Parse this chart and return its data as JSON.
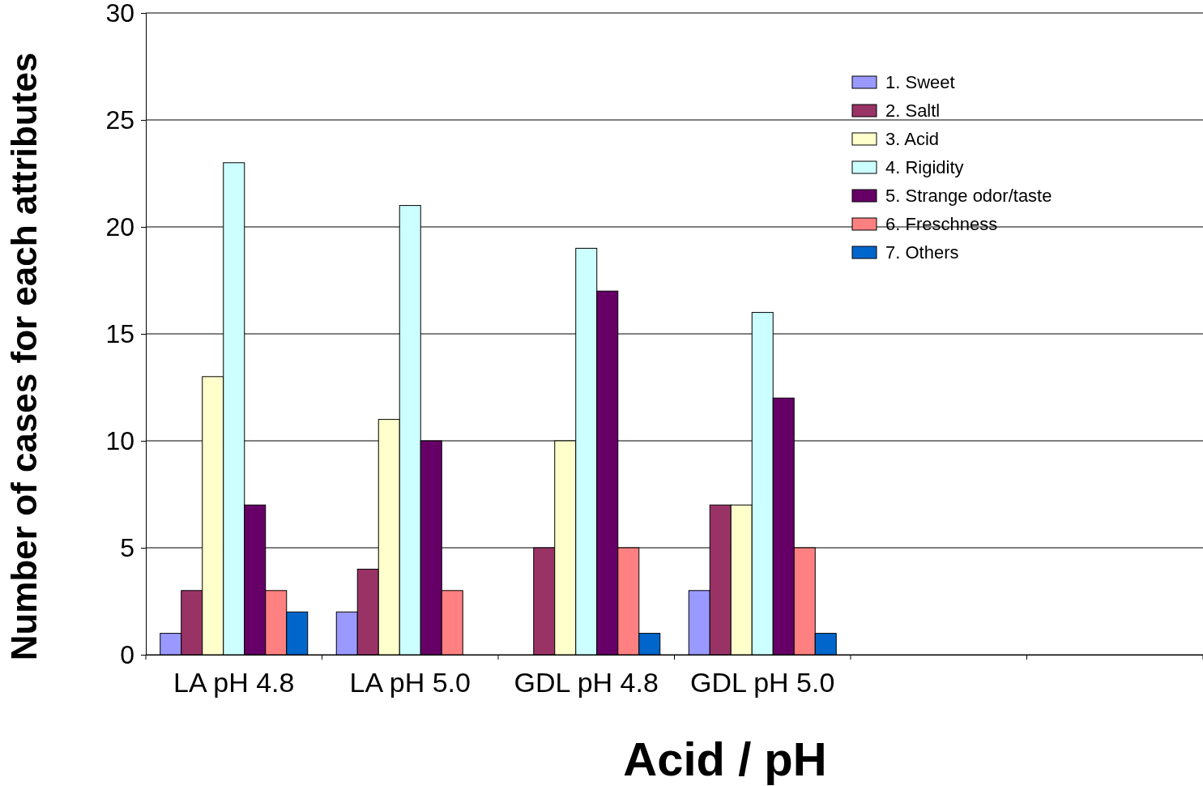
{
  "chart_data": {
    "type": "bar",
    "xlabel": "Acid / pH",
    "ylabel": "Number of cases for each attributes",
    "categories": [
      "LA pH 4.8",
      "LA pH 5.0",
      "GDL pH 4.8",
      "GDL pH 5.0",
      null,
      null
    ],
    "series": [
      {
        "name": "1. Sweet",
        "color": "#9999ff",
        "values": [
          1,
          2,
          0,
          3,
          null,
          null
        ]
      },
      {
        "name": "2. Saltl",
        "color": "#993366",
        "values": [
          3,
          4,
          5,
          7,
          null,
          null
        ]
      },
      {
        "name": "3. Acid",
        "color": "#ffffcc",
        "values": [
          13,
          11,
          10,
          7,
          null,
          null
        ]
      },
      {
        "name": "4. Rigidity",
        "color": "#ccffff",
        "values": [
          23,
          21,
          19,
          16,
          null,
          null
        ]
      },
      {
        "name": "5. Strange odor/taste",
        "color": "#660066",
        "values": [
          7,
          10,
          17,
          12,
          null,
          null
        ]
      },
      {
        "name": "6. Freschness",
        "color": "#ff8080",
        "values": [
          3,
          3,
          5,
          5,
          null,
          null
        ]
      },
      {
        "name": "7. Others",
        "color": "#0066cc",
        "values": [
          2,
          0,
          1,
          1,
          null,
          null
        ]
      }
    ],
    "ylim": [
      0,
      30
    ],
    "yticks": [
      0,
      5,
      10,
      15,
      20,
      25,
      30
    ],
    "grid": "y",
    "legend": "top right"
  }
}
